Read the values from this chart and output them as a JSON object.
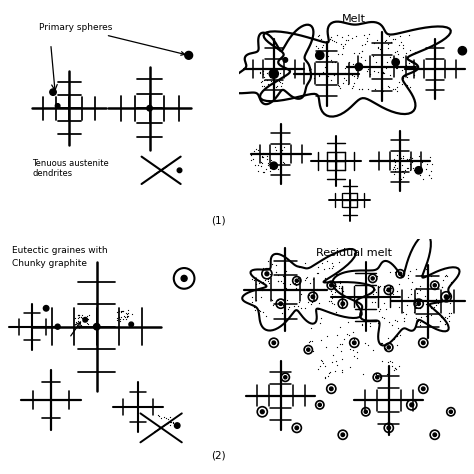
{
  "figsize": [
    4.74,
    4.74
  ],
  "dpi": 100,
  "bg_color": "#ffffff",
  "lw_main": 1.5,
  "lw_thin": 1.0,
  "dot_size": 3.0,
  "panels": {
    "p1": {
      "label": "(1)",
      "title": "",
      "text1": "Primary spheres",
      "text2": "Tenuous austenite\ndendrites"
    },
    "p2": {
      "label": "",
      "title": "Melt"
    },
    "p3": {
      "label": "(2)",
      "title": "",
      "text1": "Eutectic graines with\nChunky graphite"
    },
    "p4": {
      "label": "",
      "title": "Residual melt"
    }
  }
}
